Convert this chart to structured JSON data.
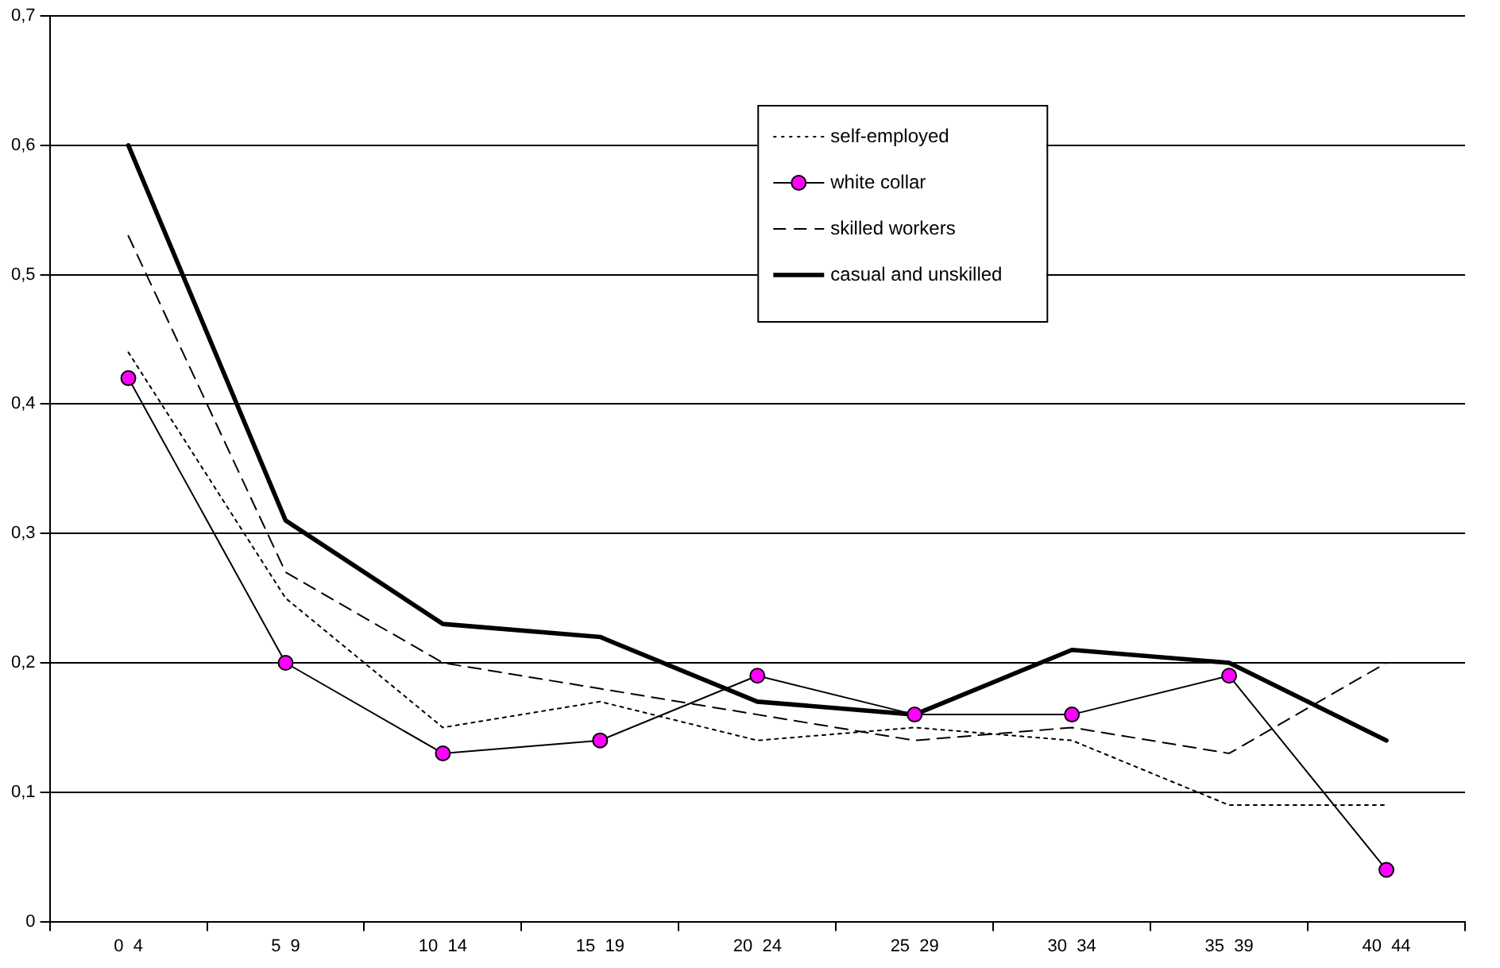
{
  "chart_data": {
    "type": "line",
    "categories": [
      "0  4",
      "5  9",
      "10  14",
      "15  19",
      "20  24",
      "25  29",
      "30  34",
      "35  39",
      "40  44"
    ],
    "series": [
      {
        "name": "self-employed",
        "color": "#000000",
        "line_style": "dotted",
        "marker": "none",
        "values": [
          0.44,
          0.25,
          0.15,
          0.17,
          0.14,
          0.15,
          0.14,
          0.09,
          0.09
        ]
      },
      {
        "name": "white collar",
        "color": "#000000",
        "line_style": "solid",
        "marker": "circle",
        "colors": [
          "#ff00ff",
          "#ff00ff",
          "#ff00ff",
          "#ff00ff",
          "#ff00ff",
          "#ff00ff",
          "#ff00ff",
          "#ff00ff",
          "#ff00ff"
        ],
        "values": [
          0.42,
          0.2,
          0.13,
          0.14,
          0.19,
          0.16,
          0.16,
          0.19,
          0.04
        ]
      },
      {
        "name": "skilled workers",
        "color": "#000000",
        "line_style": "dashed",
        "marker": "none",
        "values": [
          0.53,
          0.27,
          0.2,
          0.18,
          0.16,
          0.14,
          0.15,
          0.13,
          0.2
        ]
      },
      {
        "name": "casual and unskilled",
        "color": "#000000",
        "line_style": "solid",
        "marker": "none",
        "values": [
          0.6,
          0.31,
          0.23,
          0.22,
          0.17,
          0.16,
          0.21,
          0.2,
          0.14
        ]
      }
    ],
    "ylim": [
      0,
      0.7
    ],
    "yticks": [
      0,
      {
        "value": 0.1,
        "label": "0,1"
      },
      {
        "value": 0.2,
        "label": "0,2"
      },
      {
        "value": 0.3,
        "label": "0,3"
      },
      {
        "value": 0.4,
        "label": "0,4"
      },
      {
        "value": 0.5,
        "label": "0,5"
      },
      {
        "value": 0.6,
        "label": "0,6"
      },
      {
        "value": 0.7,
        "label": "0,7"
      }
    ],
    "grid": "y",
    "legend": "top right"
  }
}
